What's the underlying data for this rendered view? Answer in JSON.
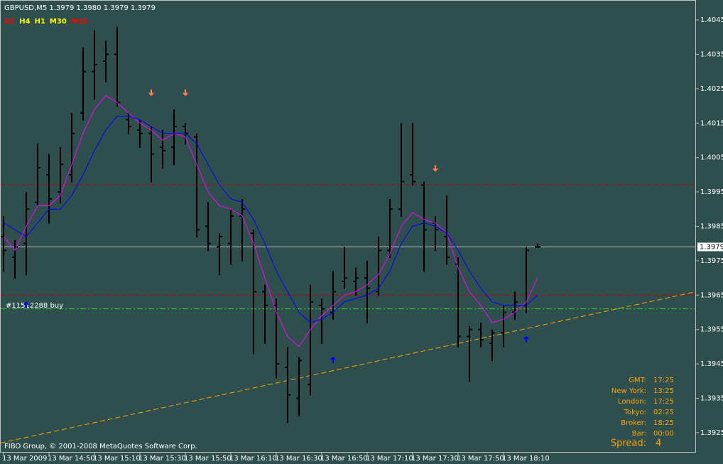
{
  "chart_data": {
    "type": "ohlc",
    "title": "GBPUSD,M5  1.3979 1.3980 1.3979 1.3979",
    "timeframes": [
      {
        "text": "D1",
        "color": "#ff0000"
      },
      {
        "text": "H4",
        "color": "#ffff00"
      },
      {
        "text": "H1",
        "color": "#ffff00"
      },
      {
        "text": "M30",
        "color": "#ffff00"
      },
      {
        "text": "M15",
        "color": "#ff0000"
      }
    ],
    "categories": [
      "13 Mar 2009",
      null,
      null,
      null,
      "13 Mar 14:50",
      null,
      null,
      null,
      "13 Mar 15:10",
      null,
      null,
      null,
      "13 Mar 15:30",
      null,
      null,
      null,
      "13 Mar 15:50",
      null,
      null,
      null,
      "13 Mar 16:10",
      null,
      null,
      null,
      "13 Mar 16:30",
      null,
      null,
      null,
      "13 Mar 16:50",
      null,
      null,
      null,
      "13 Mar 17:10",
      null,
      null,
      null,
      "13 Mar 17:30",
      null,
      null,
      null,
      "13 Mar 17:50",
      null,
      null,
      null,
      "13 Mar 18:10",
      null,
      null,
      null
    ],
    "open": [
      1.3982,
      1.3976,
      1.398,
      1.3992,
      1.4,
      1.3995,
      1.4,
      1.4018,
      1.403,
      1.4033,
      1.4035,
      1.4016,
      1.4013,
      1.4012,
      1.4008,
      1.4008,
      1.4014,
      1.4011,
      1.3985,
      1.3979,
      1.398,
      1.3988,
      1.3983,
      1.3966,
      1.3962,
      1.3944,
      1.3935,
      1.3939,
      1.3962,
      1.396,
      1.3969,
      1.3969,
      1.397,
      1.3966,
      1.3978,
      1.399,
      1.4,
      1.3997,
      1.3986,
      1.3982,
      1.3974,
      1.3953,
      1.3955,
      1.3951,
      1.3954,
      1.396,
      1.3962,
      1.3979
    ],
    "high": [
      1.3988,
      1.3981,
      1.3995,
      1.4009,
      1.4006,
      1.4008,
      1.4018,
      1.4037,
      1.4042,
      1.4039,
      1.4043,
      1.4018,
      1.4016,
      1.4014,
      1.4013,
      1.4019,
      1.4015,
      1.4012,
      1.3992,
      1.3983,
      1.399,
      1.3993,
      1.3984,
      1.3968,
      1.3964,
      1.395,
      1.3947,
      1.3968,
      1.3964,
      1.3972,
      1.3979,
      1.3973,
      1.3975,
      1.3982,
      1.3993,
      1.4015,
      1.4015,
      1.3998,
      1.3988,
      1.3994,
      1.3976,
      1.3956,
      1.3957,
      1.3955,
      1.3962,
      1.3966,
      1.3979,
      1.398
    ],
    "low": [
      1.3972,
      1.397,
      1.3971,
      1.3991,
      1.3986,
      1.3992,
      1.3998,
      1.4016,
      1.4022,
      1.4027,
      1.402,
      1.4012,
      1.4008,
      1.3998,
      1.4002,
      1.4003,
      1.4009,
      1.3982,
      1.3978,
      1.3971,
      1.3974,
      1.3975,
      1.3948,
      1.3951,
      1.3941,
      1.3928,
      1.393,
      1.3936,
      1.3951,
      1.3958,
      1.3967,
      1.3965,
      1.3957,
      1.3965,
      1.3976,
      1.3988,
      1.3997,
      1.3972,
      1.3978,
      1.3974,
      1.395,
      1.394,
      1.395,
      1.3946,
      1.395,
      1.3958,
      1.396,
      1.3979
    ],
    "close": [
      1.3978,
      1.3979,
      1.399,
      1.4002,
      1.3993,
      1.4003,
      1.4012,
      1.403,
      1.4032,
      1.4035,
      1.4021,
      1.4014,
      1.4012,
      1.4006,
      1.4007,
      1.4014,
      1.4012,
      1.3984,
      1.398,
      1.3982,
      1.3988,
      1.399,
      1.3966,
      1.3962,
      1.3945,
      1.3936,
      1.3946,
      1.3963,
      1.3961,
      1.3966,
      1.397,
      1.397,
      1.3967,
      1.3978,
      1.399,
      1.3998,
      1.3998,
      1.3984,
      1.3984,
      1.3976,
      1.3953,
      1.3955,
      1.3952,
      1.3954,
      1.396,
      1.3963,
      1.3978,
      1.3979
    ],
    "bar_color": "#000000",
    "series": [
      {
        "color": "#ff00ff",
        "values": [
          1.3982,
          1.3978,
          1.3985,
          1.3991,
          1.3991,
          1.3994,
          1.4003,
          1.4012,
          1.4019,
          1.4023,
          1.4021,
          1.4018,
          1.4015,
          1.4013,
          1.401,
          1.4012,
          1.4011,
          1.4003,
          1.3995,
          1.3991,
          1.399,
          1.3988,
          1.398,
          1.397,
          1.396,
          1.3953,
          1.395,
          1.3955,
          1.3959,
          1.3962,
          1.3965,
          1.3966,
          1.3968,
          1.3971,
          1.3977,
          1.3985,
          1.3989,
          1.3987,
          1.3986,
          1.3983,
          1.3973,
          1.3966,
          1.3962,
          1.3957,
          1.3958,
          1.396,
          1.3963,
          1.397
        ]
      },
      {
        "color": "#0000ff",
        "values": [
          1.3986,
          1.3984,
          1.3982,
          1.3986,
          1.399,
          1.399,
          1.3994,
          1.4,
          1.4007,
          1.4013,
          1.4017,
          1.4017,
          1.4016,
          1.4014,
          1.4012,
          1.4012,
          1.4012,
          1.4009,
          1.4003,
          1.3997,
          1.3993,
          1.3992,
          1.3987,
          1.398,
          1.3972,
          1.3966,
          1.396,
          1.3957,
          1.3958,
          1.396,
          1.3963,
          1.3964,
          1.3965,
          1.3967,
          1.3972,
          1.398,
          1.3985,
          1.3986,
          1.3985,
          1.3983,
          1.3978,
          1.3972,
          1.3967,
          1.3963,
          1.3962,
          1.3962,
          1.3962,
          1.3965
        ]
      }
    ],
    "levels": [
      {
        "value": 1.3997,
        "color": "#c00000",
        "dash": "6 4"
      },
      {
        "value": 1.3965,
        "color": "#c00000",
        "dash": "6 4"
      },
      {
        "value": 1.3961,
        "color": "#32cd32",
        "dash": "8 3 2 3"
      }
    ],
    "order": {
      "value": 1.3962,
      "label": "#11512288 buy"
    },
    "trendline": {
      "values": [
        1.3922,
        1.3966
      ],
      "color": "#ffa500"
    },
    "last_price": 1.3979,
    "arrows": [
      {
        "bar": 13,
        "value": 1.4024,
        "dir": "down",
        "color": "#ff7f50"
      },
      {
        "bar": 16,
        "value": 1.4024,
        "dir": "down",
        "color": "#ff7f50"
      },
      {
        "bar": 38,
        "value": 1.4002,
        "dir": "down",
        "color": "#ff7f50"
      },
      {
        "bar": 2,
        "value": 1.3962,
        "dir": "up",
        "color": "#0000ff"
      },
      {
        "bar": 29,
        "value": 1.3946,
        "dir": "up",
        "color": "#0000ff"
      },
      {
        "bar": 46,
        "value": 1.3952,
        "dir": "up",
        "color": "#0000ff"
      }
    ],
    "ylim": [
      1.39194,
      1.40508
    ],
    "yticks": [
      1.4045,
      1.4035,
      1.4025,
      1.4015,
      1.4005,
      1.3995,
      1.3985,
      1.3975,
      1.3965,
      1.3955,
      1.3945,
      1.3935,
      1.3925
    ],
    "info": [
      {
        "label": "GMT:",
        "value": "17:25"
      },
      {
        "label": "New York:",
        "value": "13:25"
      },
      {
        "label": "London:",
        "value": "17:25"
      },
      {
        "label": "Tokyo:",
        "value": "02:25"
      },
      {
        "label": "Broker:",
        "value": "18:25"
      },
      {
        "label": "Bar:",
        "value": "00:00"
      }
    ],
    "spread": {
      "label": "Spread:",
      "value": "4"
    },
    "copyright": "FIBO Group, © 2001-2008 MetaQuotes Software Corp."
  }
}
